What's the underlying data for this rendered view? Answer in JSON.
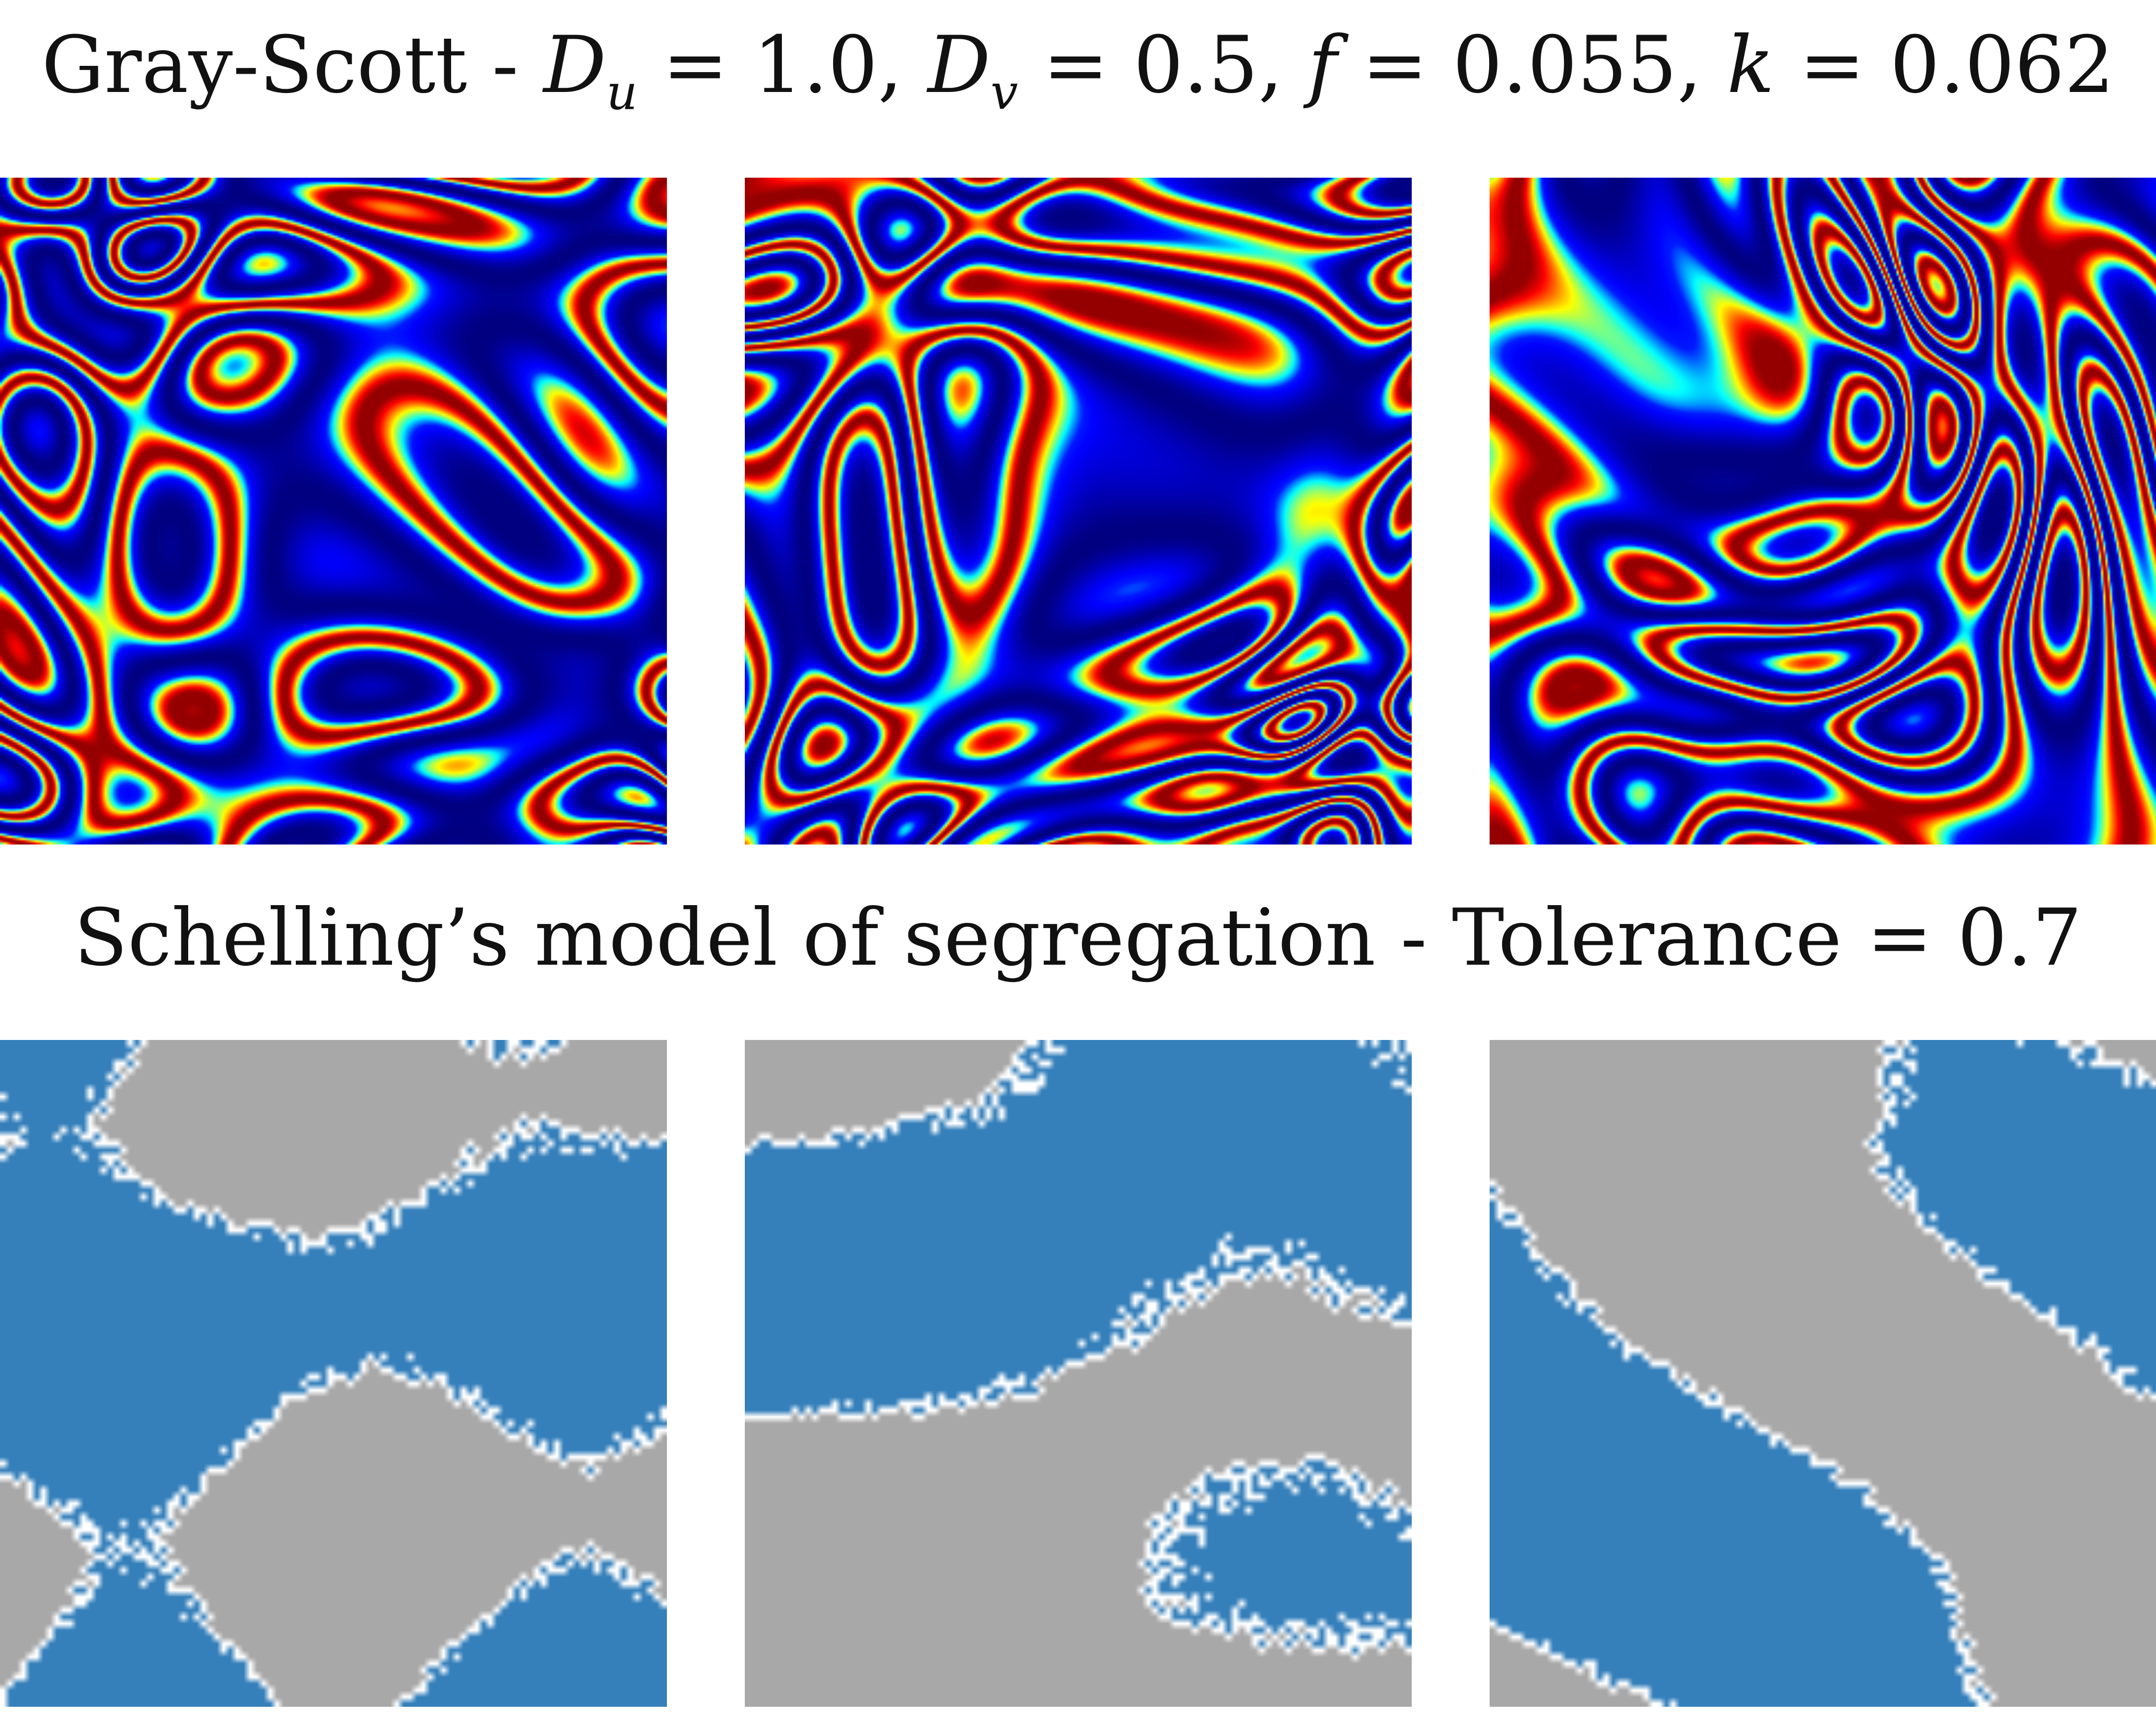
{
  "gray_scott": {
    "title_prefix": "Gray-Scott - ",
    "params": [
      {
        "symbol": "D",
        "sub": "u",
        "value": "1.0"
      },
      {
        "symbol": "D",
        "sub": "v",
        "value": "0.5"
      },
      {
        "symbol": "f",
        "sub": "",
        "value": "0.055"
      },
      {
        "symbol": "k",
        "sub": "",
        "value": "0.062"
      }
    ],
    "colormap": "jet",
    "panels": [
      {
        "name": "gray-scott-pattern-1",
        "seed": 11
      },
      {
        "name": "gray-scott-pattern-2",
        "seed": 29
      },
      {
        "name": "gray-scott-pattern-3",
        "seed": 47
      }
    ]
  },
  "schelling": {
    "title": "Schelling’s model of segregation - Tolerance = 0.7",
    "colors": {
      "group_a": "#3580bb",
      "group_b": "#a8a8a8",
      "border": "#ffffff"
    },
    "panels": [
      {
        "name": "schelling-grid-1",
        "seed": 5
      },
      {
        "name": "schelling-grid-2",
        "seed": 17
      },
      {
        "name": "schelling-grid-3",
        "seed": 33
      }
    ]
  }
}
